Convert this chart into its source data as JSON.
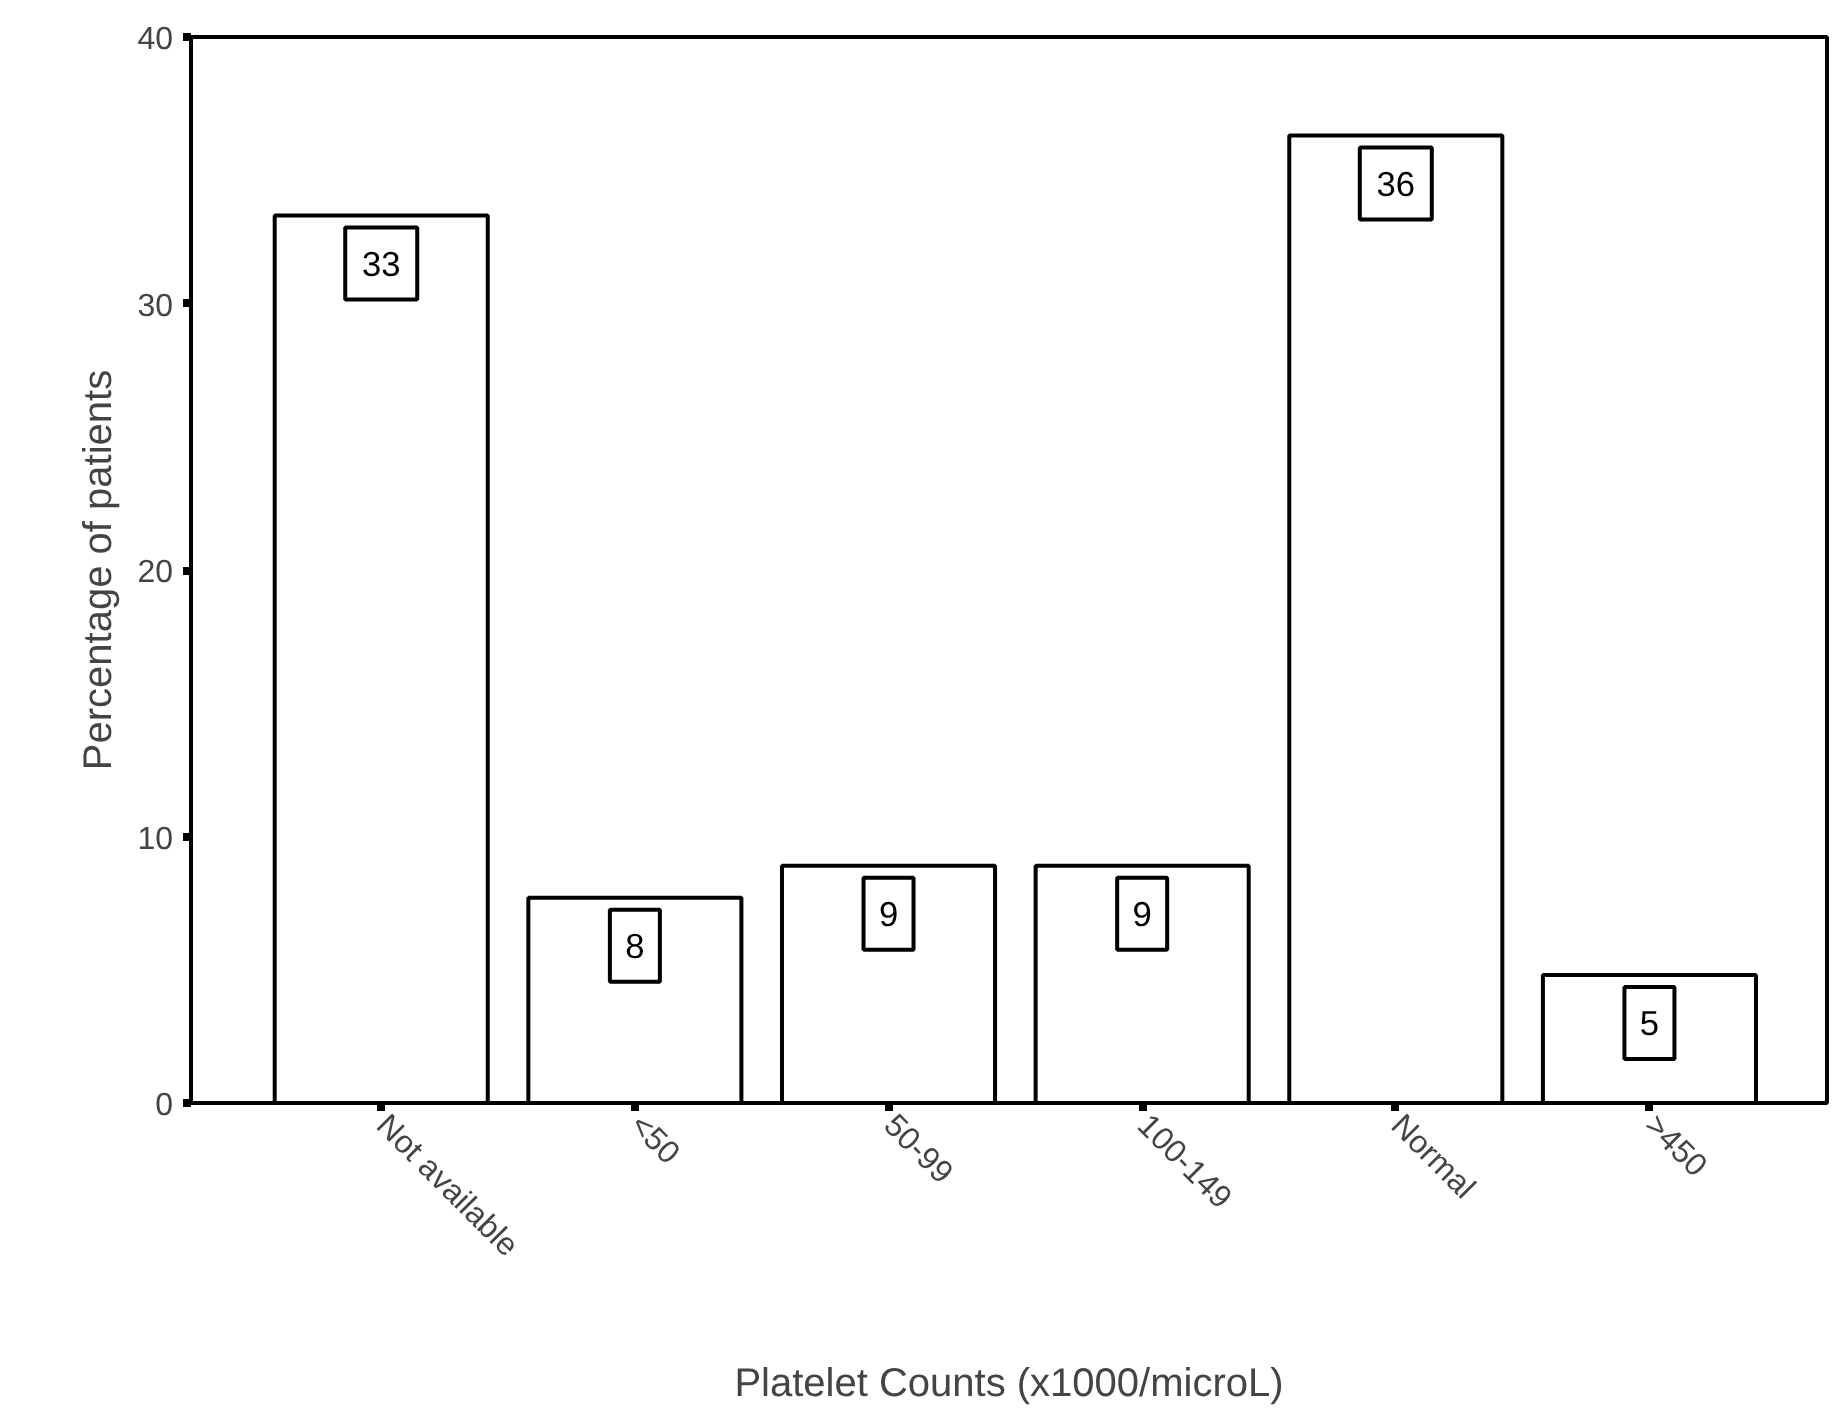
{
  "chart_data": {
    "type": "bar",
    "xlabel": "Platelet Counts (x1000/microL)",
    "ylabel": "Percentage of patients",
    "categories": [
      "Not available",
      "<50",
      "50-99",
      "100-149",
      "Normal",
      ">450"
    ],
    "values": [
      33.3,
      7.7,
      8.9,
      8.9,
      36.3,
      4.8
    ],
    "value_labels": [
      "33",
      "8",
      "9",
      "9",
      "36",
      "5"
    ],
    "color": "#ffffff",
    "ylim": [
      0,
      40
    ],
    "yticks": [
      0,
      10,
      20,
      30,
      40
    ],
    "grid": false
  }
}
